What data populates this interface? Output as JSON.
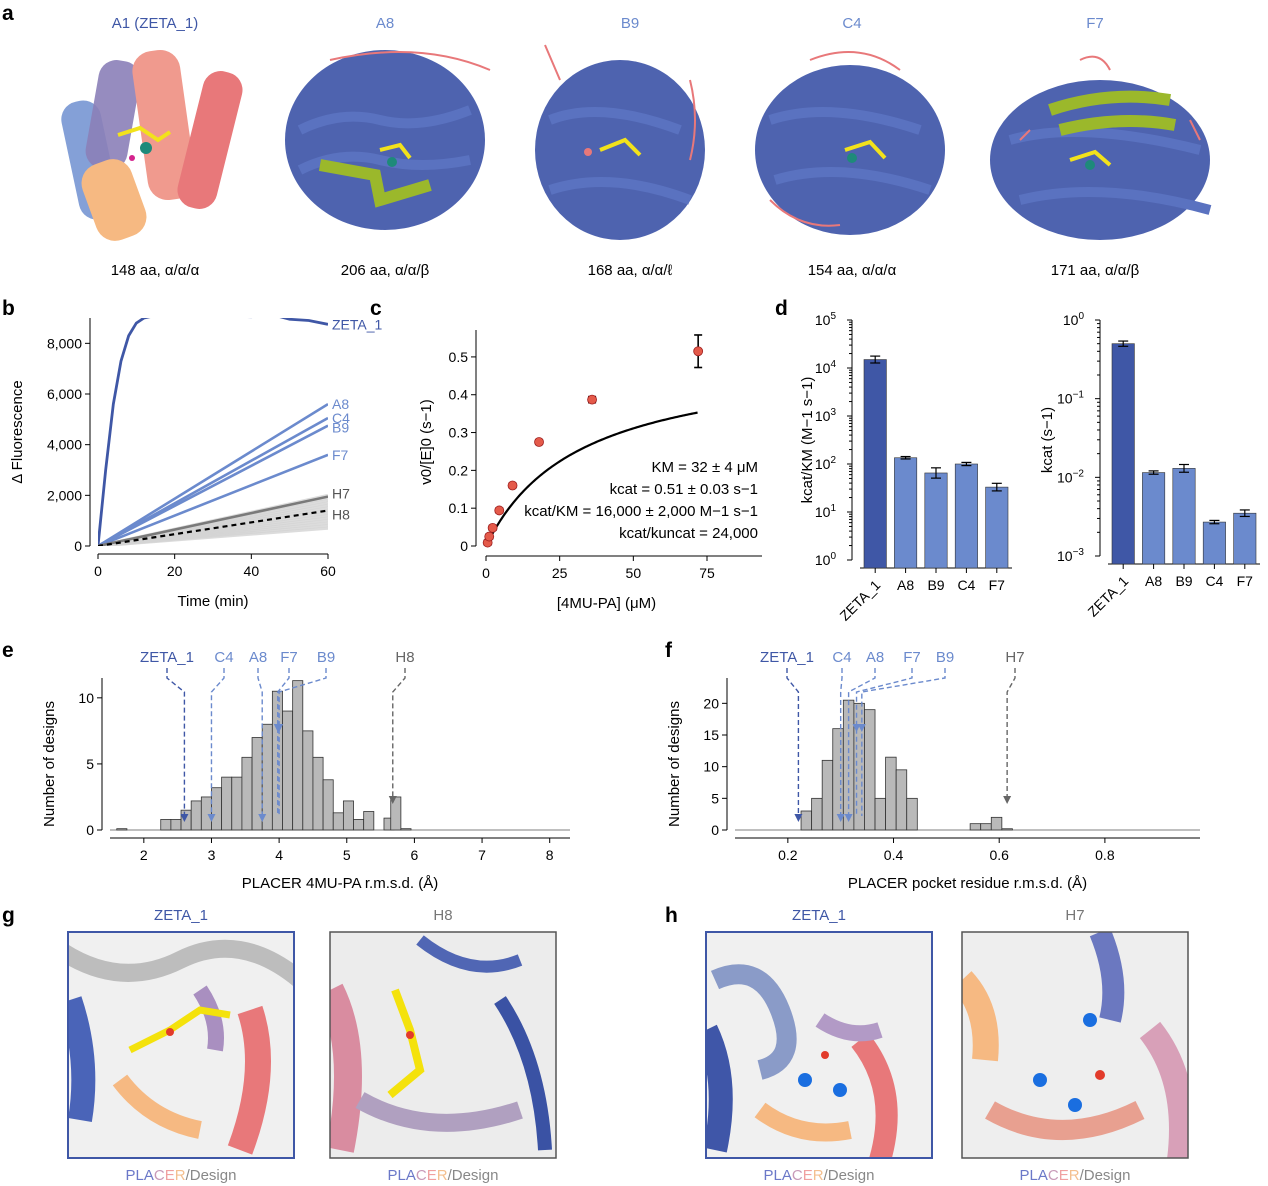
{
  "colors": {
    "dark_blue": "#3f57a6",
    "light_blue": "#6b8acd",
    "gray_bar": "#b9b9b9",
    "red_pt": "#e45a4a",
    "helix_blue": "#3f56a8",
    "salmon": "#e8787a",
    "green": "#9bb82b"
  },
  "panel_letters": {
    "a": "a",
    "b": "b",
    "c": "c",
    "d": "d",
    "e": "e",
    "f": "f",
    "g": "g",
    "h": "h"
  },
  "panel_a": {
    "structures": [
      {
        "name": "A1 (ZETA_1)",
        "caption": "148 aa, α/α/α",
        "icon": "protein-structure-icon"
      },
      {
        "name": "A8",
        "caption": "206 aa, α/α/β",
        "icon": "protein-structure-icon"
      },
      {
        "name": "B9",
        "caption": "168 aa, α/α/ℓ",
        "icon": "protein-structure-icon"
      },
      {
        "name": "C4",
        "caption": "154 aa, α/α/α",
        "icon": "protein-structure-icon"
      },
      {
        "name": "F7",
        "caption": "171 aa, α/α/β",
        "icon": "protein-structure-icon"
      }
    ]
  },
  "chart_data": [
    {
      "panel": "b",
      "type": "line",
      "title": "",
      "xlabel": "Time (min)",
      "ylabel": "Δ Fluorescence",
      "xlim": [
        0,
        60
      ],
      "ylim": [
        0,
        9000
      ],
      "xticks": [
        "0",
        "20",
        "40",
        "60"
      ],
      "yticks": [
        "0",
        "2,000",
        "4,000",
        "6,000",
        "8,000"
      ],
      "series": [
        {
          "name": "ZETA_1",
          "x": [
            0,
            2,
            4,
            6,
            8,
            10,
            12,
            15,
            20,
            30,
            40,
            45,
            50,
            55,
            60
          ],
          "values": [
            0,
            3000,
            5600,
            7300,
            8300,
            8800,
            9000,
            9100,
            9150,
            9100,
            9050,
            9150,
            8950,
            8900,
            8750
          ]
        },
        {
          "name": "A8",
          "x": [
            0,
            60
          ],
          "values": [
            0,
            5600
          ]
        },
        {
          "name": "C4",
          "x": [
            0,
            60
          ],
          "values": [
            0,
            5050
          ]
        },
        {
          "name": "B9",
          "x": [
            0,
            60
          ],
          "values": [
            0,
            4750
          ]
        },
        {
          "name": "F7",
          "x": [
            0,
            60
          ],
          "values": [
            0,
            3600
          ]
        },
        {
          "name": "H7",
          "x": [
            0,
            60
          ],
          "values": [
            0,
            1950
          ]
        },
        {
          "name": "H8",
          "x": [
            0,
            60
          ],
          "values": [
            0,
            1400
          ]
        }
      ]
    },
    {
      "panel": "c",
      "type": "scatter",
      "xlabel": "[4MU-PA] (μM)",
      "ylabel": "v0/[E]0 (s−1)",
      "xlim": [
        0,
        75
      ],
      "ylim": [
        0,
        0.55
      ],
      "xticks": [
        "0",
        "25",
        "50",
        "75"
      ],
      "yticks": [
        "0",
        "0.1",
        "0.2",
        "0.3",
        "0.4",
        "0.5"
      ],
      "x": [
        0.56,
        1.1,
        2.25,
        4.5,
        9,
        18,
        36,
        72
      ],
      "values": [
        0.009,
        0.025,
        0.048,
        0.094,
        0.16,
        0.275,
        0.387,
        0.515
      ],
      "fit": {
        "KM": 32,
        "kcat": 0.51
      },
      "annotations": [
        "KM = 32 ± 4 μM",
        "kcat = 0.51 ± 0.03 s−1",
        "kcat/KM = 16,000 ± 2,000 M−1 s−1",
        "kcat/kuncat = 24,000"
      ]
    },
    {
      "panel": "d1",
      "type": "bar",
      "ylabel": "kcat/KM (M−1 s−1)",
      "scale": "log",
      "ylim": [
        1,
        100000
      ],
      "yticks": [
        "10^0",
        "10^1",
        "10^2",
        "10^3",
        "10^4",
        "10^5"
      ],
      "categories": [
        "ZETA_1",
        "A8",
        "B9",
        "C4",
        "F7"
      ],
      "values": [
        15000,
        135,
        65,
        100,
        33
      ]
    },
    {
      "panel": "d2",
      "type": "bar",
      "ylabel": "kcat (s−1)",
      "scale": "log",
      "ylim": [
        0.001,
        1
      ],
      "yticks": [
        "10^-3",
        "10^-2",
        "10^-1",
        "10^0"
      ],
      "categories": [
        "ZETA_1",
        "A8",
        "B9",
        "C4",
        "F7"
      ],
      "values": [
        0.5,
        0.0115,
        0.013,
        0.0027,
        0.0035
      ]
    },
    {
      "panel": "e",
      "type": "bar",
      "xlabel": "PLACER 4MU-PA r.m.s.d. (Å)",
      "ylabel": "Number of designs",
      "xlim": [
        1.5,
        8.3
      ],
      "ylim": [
        0,
        11.5
      ],
      "xticks": [
        "2",
        "3",
        "4",
        "5",
        "6",
        "7",
        "8"
      ],
      "yticks": [
        "0",
        "5",
        "10"
      ],
      "bin_left": [
        1.6,
        2.25,
        2.4,
        2.55,
        2.7,
        2.85,
        3.0,
        3.15,
        3.3,
        3.45,
        3.6,
        3.75,
        3.9,
        4.05,
        4.2,
        4.35,
        4.5,
        4.65,
        4.8,
        4.95,
        5.1,
        5.25,
        5.55,
        5.65,
        5.8
      ],
      "values": [
        0.1,
        0.8,
        0.8,
        1.5,
        2.2,
        2.5,
        3.2,
        4.0,
        4.0,
        5.5,
        7.0,
        8.0,
        10.5,
        9.0,
        11.3,
        7.5,
        5.5,
        3.8,
        1.3,
        2.2,
        0.8,
        1.4,
        0.9,
        2.5,
        0.1
      ],
      "markers": [
        {
          "label": "ZETA_1",
          "x": 2.6
        },
        {
          "label": "C4",
          "x": 3.0
        },
        {
          "label": "A8",
          "x": 3.75
        },
        {
          "label": "F7",
          "x": 3.98
        },
        {
          "label": "B9",
          "x": 4.0
        },
        {
          "label": "H8",
          "x": 5.68
        }
      ]
    },
    {
      "panel": "f",
      "type": "bar",
      "xlabel": "PLACER pocket residue r.m.s.d. (Å)",
      "ylabel": "Number of designs",
      "xlim": [
        0.1,
        0.98
      ],
      "ylim": [
        0,
        24
      ],
      "xticks": [
        "0.2",
        "0.4",
        "0.6",
        "0.8"
      ],
      "yticks": [
        "0",
        "5",
        "10",
        "15",
        "20"
      ],
      "bin_left": [
        0.225,
        0.245,
        0.265,
        0.285,
        0.305,
        0.325,
        0.345,
        0.365,
        0.385,
        0.405,
        0.425,
        0.545,
        0.565,
        0.585,
        0.605
      ],
      "values": [
        3,
        5,
        11,
        16,
        20.5,
        20,
        19,
        5,
        11.5,
        9.5,
        5,
        1,
        1,
        2,
        0.2
      ],
      "markers": [
        {
          "label": "ZETA_1",
          "x": 0.22
        },
        {
          "label": "C4",
          "x": 0.3
        },
        {
          "label": "A8",
          "x": 0.315
        },
        {
          "label": "F7",
          "x": 0.33
        },
        {
          "label": "B9",
          "x": 0.34
        },
        {
          "label": "H7",
          "x": 0.615
        }
      ]
    }
  ],
  "panel_g": {
    "left_title": "ZETA_1",
    "right_title": "H8",
    "caption_parts": [
      "PLA",
      "C",
      "E",
      "R",
      "/Design"
    ]
  },
  "panel_h": {
    "left_title": "ZETA_1",
    "right_title": "H7",
    "caption_parts": [
      "PLA",
      "C",
      "E",
      "R",
      "/Design"
    ]
  }
}
